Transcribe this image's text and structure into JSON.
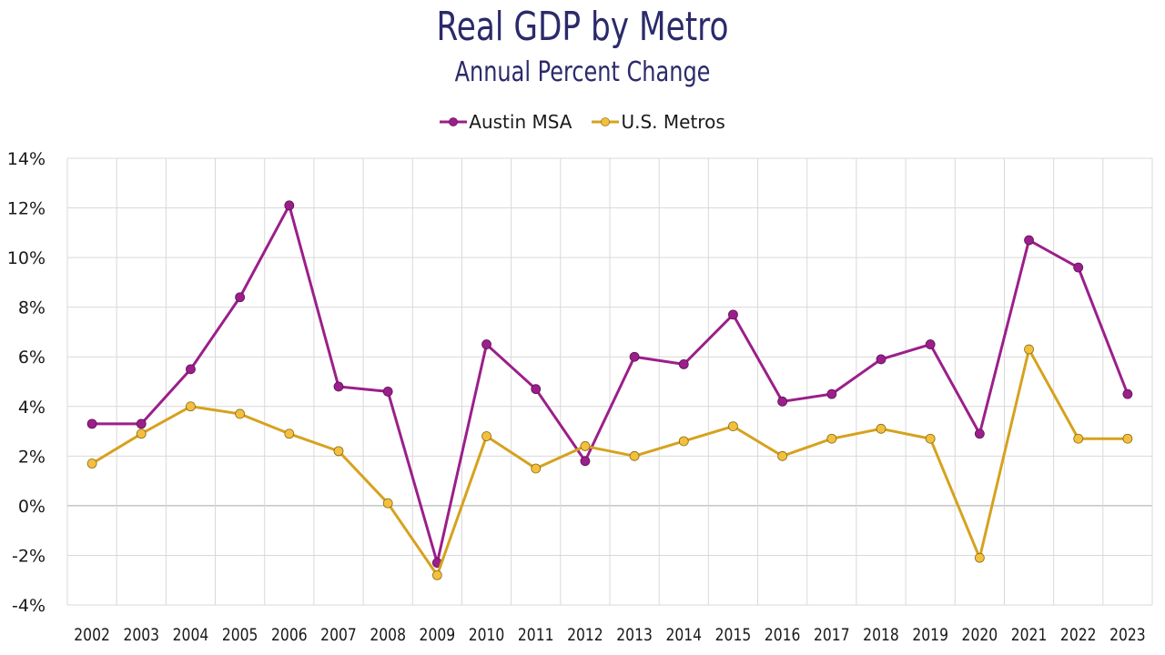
{
  "chart_data": {
    "type": "line",
    "title": "Real GDP by Metro",
    "subtitle": "Annual Percent Change",
    "xlabel": "",
    "ylabel": "",
    "ylim": [
      -4,
      14
    ],
    "ytick_step": 2,
    "ytick_suffix": "%",
    "grid": true,
    "legend_position": "top-center",
    "categories": [
      "2002",
      "2003",
      "2004",
      "2005",
      "2006",
      "2007",
      "2008",
      "2009",
      "2010",
      "2011",
      "2012",
      "2013",
      "2014",
      "2015",
      "2016",
      "2017",
      "2018",
      "2019",
      "2020",
      "2021",
      "2022",
      "2023"
    ],
    "series": [
      {
        "name": "Austin MSA",
        "line_color": "#9b1f8a",
        "marker_color": "#9b1f8a",
        "values": [
          3.3,
          3.3,
          5.5,
          8.4,
          12.1,
          4.8,
          4.6,
          -2.3,
          6.5,
          4.7,
          1.8,
          6.0,
          5.7,
          7.7,
          4.2,
          4.5,
          5.9,
          6.5,
          2.9,
          10.7,
          9.6,
          4.5
        ]
      },
      {
        "name": "U.S. Metros",
        "line_color": "#d6a21e",
        "marker_color": "#f3c03d",
        "values": [
          1.7,
          2.9,
          4.0,
          3.7,
          2.9,
          2.2,
          0.1,
          -2.8,
          2.8,
          1.5,
          2.4,
          2.0,
          2.6,
          3.2,
          2.0,
          2.7,
          3.1,
          2.7,
          -2.1,
          6.3,
          2.7,
          2.7
        ]
      }
    ]
  }
}
